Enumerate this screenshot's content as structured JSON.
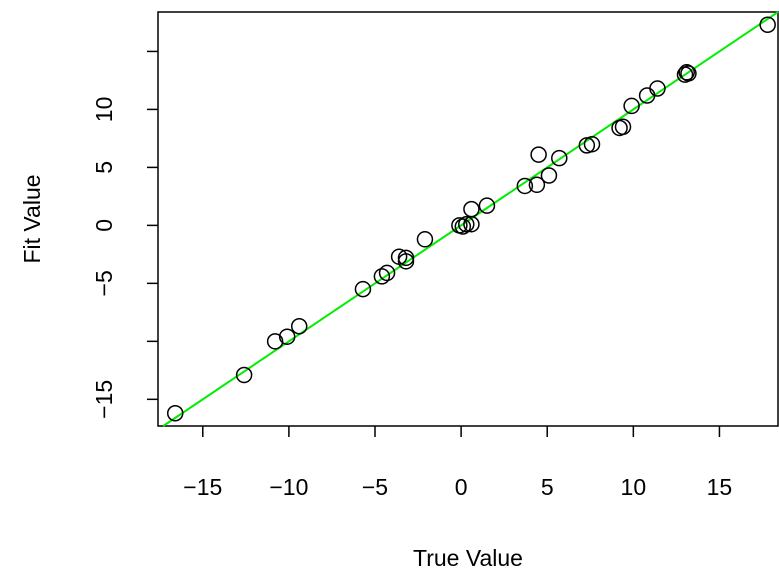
{
  "chart_data": {
    "type": "scatter",
    "xlabel": "True Value",
    "ylabel": "Fit Value",
    "xlim": [
      -17.6,
      18.4
    ],
    "ylim": [
      -17.3,
      18.4
    ],
    "xticks": [
      -15,
      -10,
      -5,
      0,
      5,
      10,
      15
    ],
    "yticks": [
      -15,
      -5,
      0,
      5,
      10
    ],
    "ytick_minor": [
      -10,
      15
    ],
    "grid": false,
    "point_color": "#000000",
    "fit_line_color": "#00ee00",
    "fit_line": {
      "slope": 1,
      "intercept": 0
    },
    "points": [
      {
        "x": -16.6,
        "y": -16.2
      },
      {
        "x": -12.6,
        "y": -12.9
      },
      {
        "x": -10.8,
        "y": -10.0
      },
      {
        "x": -10.1,
        "y": -9.6
      },
      {
        "x": -9.4,
        "y": -8.7
      },
      {
        "x": -5.7,
        "y": -5.5
      },
      {
        "x": -4.6,
        "y": -4.4
      },
      {
        "x": -4.3,
        "y": -4.1
      },
      {
        "x": -3.6,
        "y": -2.7
      },
      {
        "x": -3.2,
        "y": -3.1
      },
      {
        "x": -3.2,
        "y": -2.8
      },
      {
        "x": -2.1,
        "y": -1.2
      },
      {
        "x": -0.1,
        "y": 0.0
      },
      {
        "x": 0.1,
        "y": -0.1
      },
      {
        "x": 0.3,
        "y": 0.1
      },
      {
        "x": 0.6,
        "y": 0.1
      },
      {
        "x": 0.6,
        "y": 1.4
      },
      {
        "x": 1.5,
        "y": 1.7
      },
      {
        "x": 3.7,
        "y": 3.4
      },
      {
        "x": 4.4,
        "y": 3.5
      },
      {
        "x": 4.5,
        "y": 6.1
      },
      {
        "x": 5.1,
        "y": 4.3
      },
      {
        "x": 5.7,
        "y": 5.8
      },
      {
        "x": 7.3,
        "y": 6.9
      },
      {
        "x": 7.6,
        "y": 7.0
      },
      {
        "x": 9.2,
        "y": 8.4
      },
      {
        "x": 9.4,
        "y": 8.5
      },
      {
        "x": 9.9,
        "y": 10.3
      },
      {
        "x": 10.8,
        "y": 11.2
      },
      {
        "x": 11.4,
        "y": 11.8
      },
      {
        "x": 13.0,
        "y": 13.0
      },
      {
        "x": 13.1,
        "y": 13.2
      },
      {
        "x": 13.2,
        "y": 13.1
      },
      {
        "x": 17.8,
        "y": 17.3
      }
    ]
  }
}
